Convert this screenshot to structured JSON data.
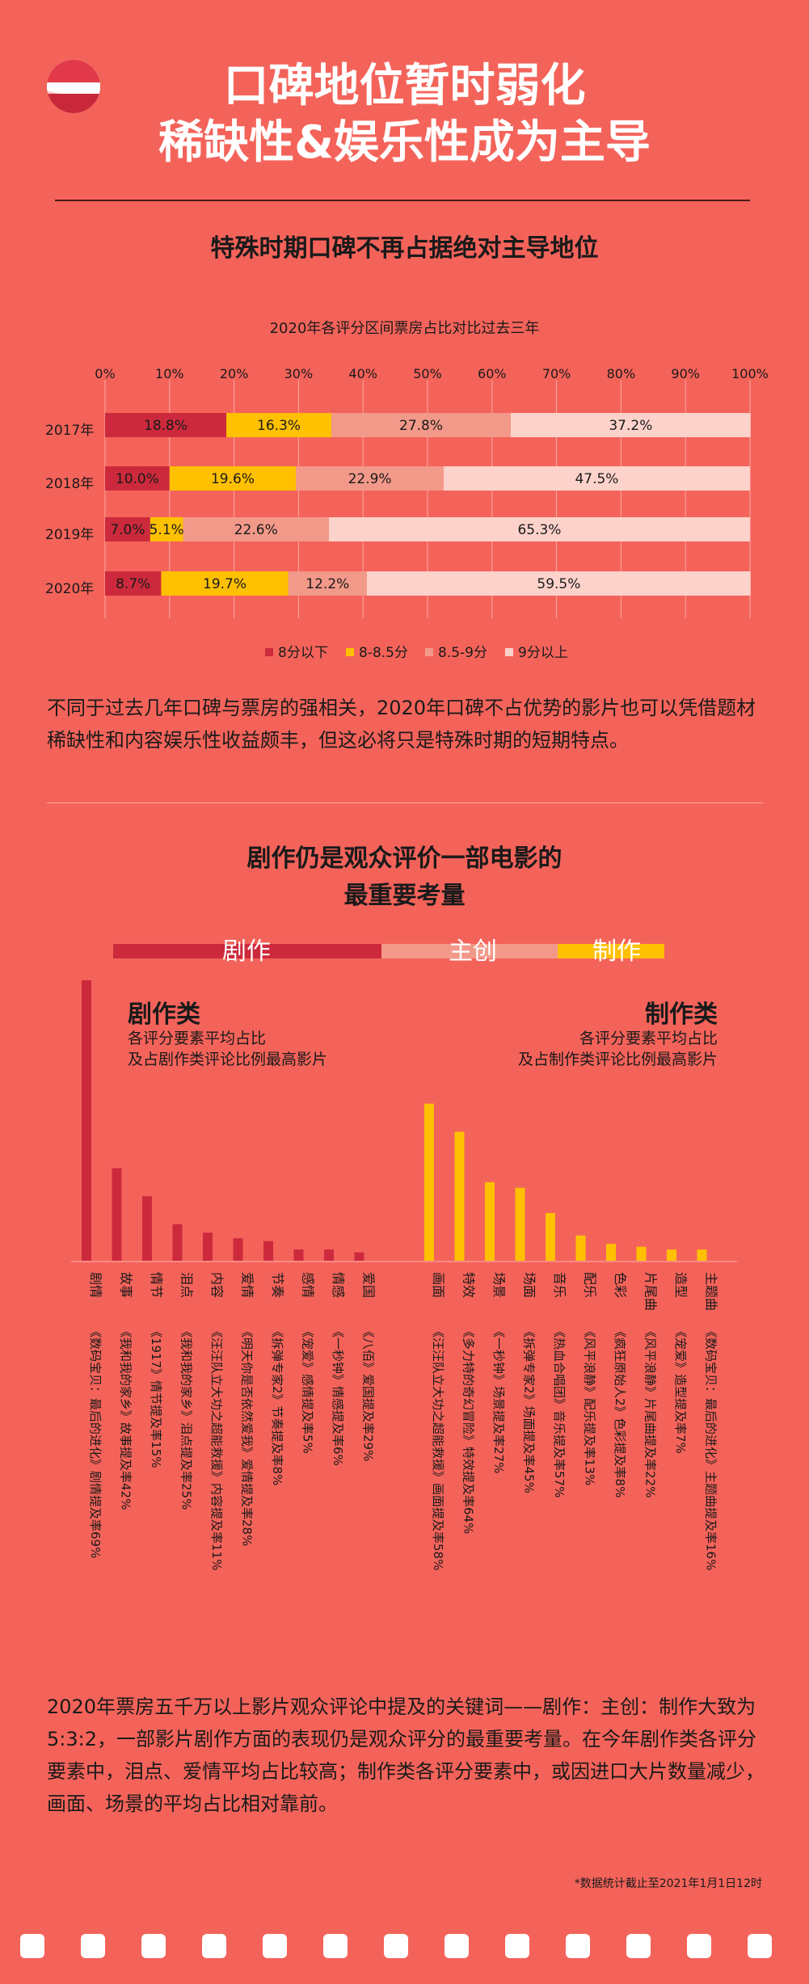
{
  "header": {
    "title_line1": "口碑地位暂时弱化",
    "title_line2": "稀缺性&娱乐性成为主导"
  },
  "section1": {
    "title": "特殊时期口碑不再占据绝对主导地位",
    "paragraph": "不同于过去几年口碑与票房的强相关，2020年口碑不占优势的影片也可以凭借题材稀缺性和内容娱乐性收益颇丰，但这必将只是特殊时期的短期特点。"
  },
  "section2": {
    "title_line1": "剧作仍是观众评价一部电影的",
    "title_line2": "最重要考量",
    "ratio": [
      {
        "label": "剧作",
        "value": 5,
        "color": "#cc2a3c"
      },
      {
        "label": "主创",
        "value": 3,
        "color": "#f2998a"
      },
      {
        "label": "制作",
        "value": 2,
        "color": "#ffc000"
      }
    ],
    "left_title": "剧作类",
    "left_sub1": "各评分要素平均占比",
    "left_sub2": "及占剧作类评论比例最高影片",
    "right_title": "制作类",
    "right_sub1": "各评分要素平均占比",
    "right_sub2": "及占制作类评论比例最高影片",
    "paragraph": "2020年票房五千万以上影片观众评论中提及的关键词——剧作：主创：制作大致为5:3:2，一部影片剧作方面的表现仍是观众评分的最重要考量。在今年剧作类各评分要素中，泪点、爱情平均占比较高；制作类各评分要素中，或因进口大片数量减少，画面、场景的平均占比相对靠前。",
    "footnote": "*数据统计截止至2021年1月1日12时"
  },
  "chart_data": [
    {
      "type": "bar",
      "orientation": "horizontal",
      "stacked": true,
      "title": "2020年各评分区间票房占比对比过去三年",
      "categories": [
        "2017年",
        "2018年",
        "2019年",
        "2020年"
      ],
      "xlim": [
        0,
        100
      ],
      "x_ticks": [
        "0%",
        "10%",
        "20%",
        "30%",
        "40%",
        "50%",
        "60%",
        "70%",
        "80%",
        "90%",
        "100%"
      ],
      "legend_position": "bottom",
      "series": [
        {
          "name": "8分以下",
          "color": "#cc2a3c",
          "values": [
            18.8,
            10.0,
            7.0,
            8.7
          ],
          "labels": [
            "18.8%",
            "10.0%",
            "7.0%",
            "8.7%"
          ]
        },
        {
          "name": "8-8.5分",
          "color": "#ffc000",
          "values": [
            16.3,
            19.6,
            5.1,
            19.7
          ],
          "labels": [
            "16.3%",
            "19.6%",
            "5.1%",
            "19.7%"
          ]
        },
        {
          "name": "8.5-9分",
          "color": "#f2998a",
          "values": [
            27.8,
            22.9,
            22.6,
            12.2
          ],
          "labels": [
            "27.8%",
            "22.9%",
            "22.6%",
            "12.2%"
          ]
        },
        {
          "name": "9分以上",
          "color": "#fcd2cb",
          "values": [
            37.2,
            47.5,
            65.3,
            59.5
          ],
          "labels": [
            "37.2%",
            "47.5%",
            "65.3%",
            "59.5%"
          ]
        }
      ]
    },
    {
      "type": "bar",
      "title": "剧作类",
      "color": "#cc2a3c",
      "categories": [
        "剧情",
        "故事",
        "情节",
        "泪点",
        "内容",
        "爱情",
        "节奏",
        "感情",
        "情感",
        "爱国"
      ],
      "values": [
        100,
        33,
        23,
        13,
        10,
        8,
        7,
        4,
        4,
        3
      ],
      "films": [
        "《数码宝贝：最后的进化》剧情提及率69%",
        "《我和我的家乡》故事提及率42%",
        "《1917》情节提及率15%",
        "《我和我的家乡》泪点提及率25%",
        "《汪汪队立大功之超能救援》内容提及率11%",
        "《明天你是否依然爱我》爱情提及率28%",
        "《拆弹专家2》节奏提及率8%",
        "《宠爱》感情提及率5%",
        "《一秒钟》情感提及率6%",
        "《八佰》爱国提及率29%"
      ]
    },
    {
      "type": "bar",
      "title": "制作类",
      "color": "#ffc000",
      "categories": [
        "画面",
        "特效",
        "场景",
        "场面",
        "音乐",
        "配乐",
        "色彩",
        "片尾曲",
        "造型",
        "主题曲"
      ],
      "values": [
        56,
        46,
        28,
        26,
        17,
        9,
        6,
        5,
        4,
        4
      ],
      "films": [
        "《汪汪队立大功之超能救援》画面提及率58%",
        "《多力特的奇幻冒险》特效提及率64%",
        "《一秒钟》场景提及率27%",
        "《拆弹专家2》场面提及率45%",
        "《热血合唱团》音乐提及率57%",
        "《风平浪静》配乐提及率13%",
        "《疯狂原始人2》色彩提及率8%",
        "《风平浪静》片尾曲提及率22%",
        "《宠爱》造型提及率7%",
        "《数码宝贝：最后的进化》主题曲提及率16%"
      ]
    }
  ]
}
